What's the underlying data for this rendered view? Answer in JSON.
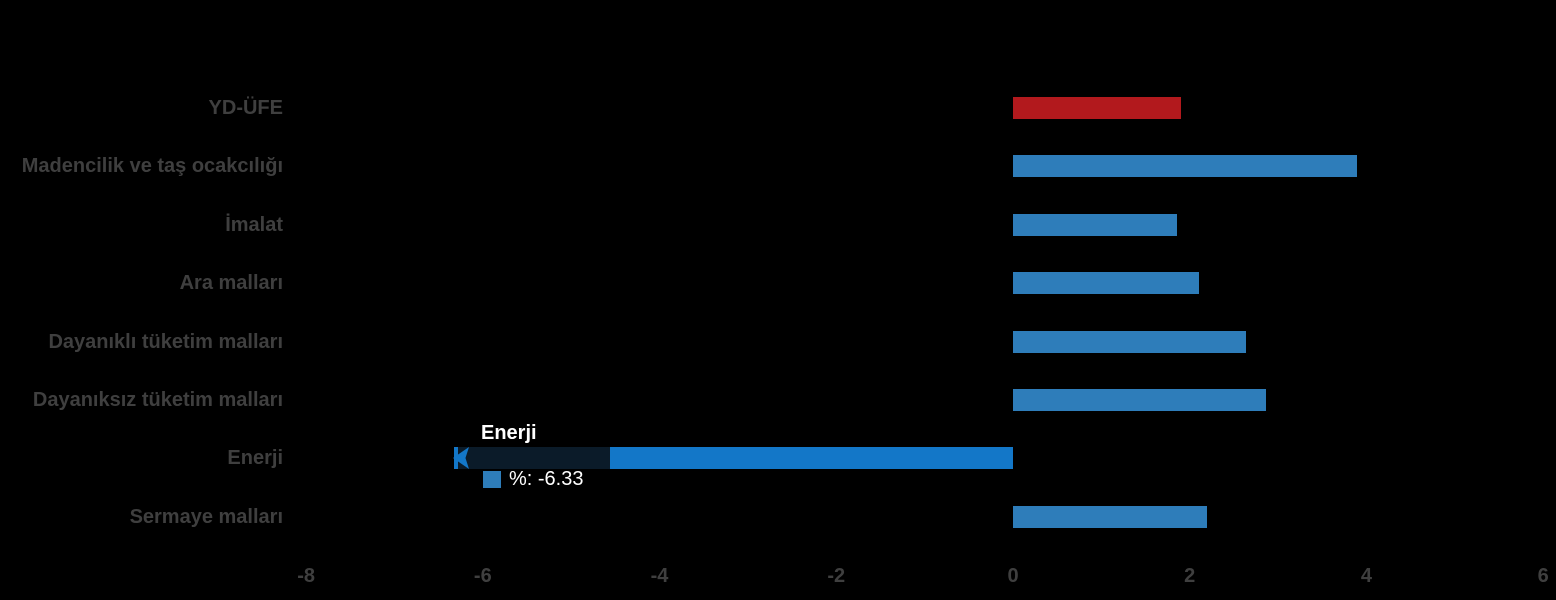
{
  "chart_data": {
    "type": "bar",
    "orientation": "horizontal",
    "title": "",
    "xlabel": "",
    "ylabel": "",
    "categories": [
      "YD-ÜFE",
      "Madencilik ve taş ocakcılığı",
      "İmalat",
      "Ara malları",
      "Dayanıklı tüketim malları",
      "Dayanıksız tüketim malları",
      "Enerji",
      "Sermaye malları"
    ],
    "values": [
      1.9,
      3.89,
      1.86,
      2.1,
      2.64,
      2.86,
      -6.33,
      2.19
    ],
    "bar_colors": [
      "#b2191d",
      "#2e7dba",
      "#2e7dba",
      "#2e7dba",
      "#2e7dba",
      "#2e7dba",
      "#1377c8",
      "#2e7dba"
    ],
    "xlim": [
      -8,
      6
    ],
    "x_ticks": [
      -8,
      -6,
      -4,
      -2,
      0,
      2,
      4,
      6
    ],
    "x_tick_labels": [
      "-8",
      "-6",
      "-4",
      "-2",
      "0",
      "2",
      "4",
      "6"
    ],
    "grid": false,
    "legend": false
  },
  "tooltip": {
    "title": "Enerji",
    "value_label": "%: -6.33",
    "swatch_color": "#2e7dba",
    "background_color": "#0b1b29",
    "arrow_color": "#1377c8"
  },
  "colors": {
    "background": "#000000",
    "axis_text": "#3f3f3f",
    "category_text": "#3f3f3f",
    "default_bar": "#2e7dba",
    "highlight_bar": "#1377c8",
    "emphasis_bar": "#b2191d"
  }
}
